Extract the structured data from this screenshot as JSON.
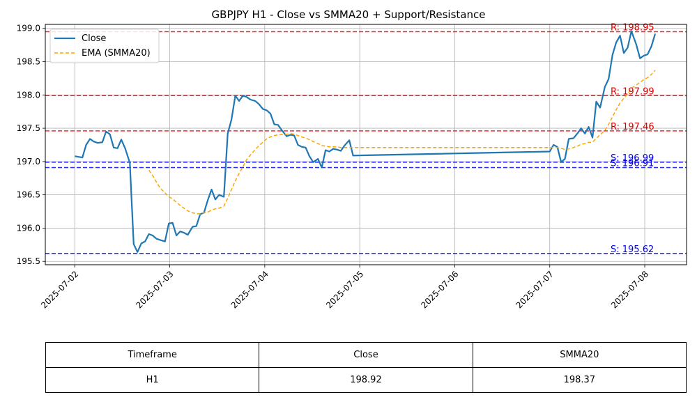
{
  "chart_data": {
    "type": "line",
    "title": "GBPJPY H1 - Close vs SMMA20 + Support/Resistance",
    "xlabel": "",
    "ylabel": "",
    "x_ticks": [
      "2025-07-02",
      "2025-07-03",
      "2025-07-04",
      "2025-07-05",
      "2025-07-06",
      "2025-07-07",
      "2025-07-08"
    ],
    "y_ticks": [
      "195.5",
      "196.0",
      "196.5",
      "197.0",
      "197.5",
      "198.0",
      "198.5",
      "199.0"
    ],
    "ylim": [
      195.45,
      199.06
    ],
    "xlim_days": [
      -0.31,
      6.44
    ],
    "grid": true,
    "legend_position": "top-left",
    "series": [
      {
        "name": "Close",
        "color": "#1f77b4",
        "style": "solid",
        "points": [
          [
            0.0,
            197.08
          ],
          [
            0.04,
            197.07
          ],
          [
            0.08,
            197.06
          ],
          [
            0.12,
            197.25
          ],
          [
            0.16,
            197.34
          ],
          [
            0.2,
            197.3
          ],
          [
            0.24,
            197.28
          ],
          [
            0.29,
            197.29
          ],
          [
            0.33,
            197.45
          ],
          [
            0.37,
            197.41
          ],
          [
            0.41,
            197.21
          ],
          [
            0.45,
            197.2
          ],
          [
            0.49,
            197.33
          ],
          [
            0.53,
            197.2
          ],
          [
            0.58,
            196.98
          ],
          [
            0.62,
            195.76
          ],
          [
            0.66,
            195.64
          ],
          [
            0.7,
            195.77
          ],
          [
            0.74,
            195.8
          ],
          [
            0.78,
            195.91
          ],
          [
            0.82,
            195.89
          ],
          [
            0.86,
            195.84
          ],
          [
            0.9,
            195.82
          ],
          [
            0.95,
            195.8
          ],
          [
            0.99,
            196.07
          ],
          [
            1.03,
            196.08
          ],
          [
            1.07,
            195.89
          ],
          [
            1.11,
            195.95
          ],
          [
            1.15,
            195.93
          ],
          [
            1.19,
            195.9
          ],
          [
            1.24,
            196.02
          ],
          [
            1.28,
            196.03
          ],
          [
            1.32,
            196.21
          ],
          [
            1.36,
            196.23
          ],
          [
            1.4,
            196.42
          ],
          [
            1.44,
            196.58
          ],
          [
            1.48,
            196.43
          ],
          [
            1.52,
            196.5
          ],
          [
            1.57,
            196.47
          ],
          [
            1.61,
            197.42
          ],
          [
            1.65,
            197.63
          ],
          [
            1.69,
            197.99
          ],
          [
            1.73,
            197.91
          ],
          [
            1.77,
            197.99
          ],
          [
            1.81,
            197.97
          ],
          [
            1.85,
            197.93
          ],
          [
            1.9,
            197.91
          ],
          [
            1.94,
            197.86
          ],
          [
            1.98,
            197.79
          ],
          [
            2.02,
            197.77
          ],
          [
            2.06,
            197.72
          ],
          [
            2.1,
            197.56
          ],
          [
            2.14,
            197.55
          ],
          [
            2.18,
            197.47
          ],
          [
            2.23,
            197.38
          ],
          [
            2.27,
            197.4
          ],
          [
            2.31,
            197.39
          ],
          [
            2.35,
            197.25
          ],
          [
            2.39,
            197.22
          ],
          [
            2.43,
            197.21
          ],
          [
            2.47,
            197.08
          ],
          [
            2.51,
            196.99
          ],
          [
            2.56,
            197.04
          ],
          [
            2.6,
            196.91
          ],
          [
            2.64,
            197.17
          ],
          [
            2.68,
            197.15
          ],
          [
            2.72,
            197.19
          ],
          [
            2.76,
            197.18
          ],
          [
            2.8,
            197.16
          ],
          [
            2.84,
            197.24
          ],
          [
            2.89,
            197.32
          ],
          [
            2.93,
            197.09
          ],
          [
            5.0,
            197.15
          ],
          [
            5.04,
            197.25
          ],
          [
            5.08,
            197.22
          ],
          [
            5.12,
            196.99
          ],
          [
            5.16,
            197.04
          ],
          [
            5.2,
            197.34
          ],
          [
            5.25,
            197.35
          ],
          [
            5.29,
            197.42
          ],
          [
            5.33,
            197.5
          ],
          [
            5.37,
            197.42
          ],
          [
            5.41,
            197.52
          ],
          [
            5.45,
            197.36
          ],
          [
            5.49,
            197.9
          ],
          [
            5.53,
            197.81
          ],
          [
            5.58,
            198.12
          ],
          [
            5.62,
            198.24
          ],
          [
            5.66,
            198.6
          ],
          [
            5.7,
            198.79
          ],
          [
            5.74,
            198.89
          ],
          [
            5.78,
            198.63
          ],
          [
            5.82,
            198.71
          ],
          [
            5.86,
            198.96
          ],
          [
            5.91,
            198.76
          ],
          [
            5.95,
            198.55
          ],
          [
            5.99,
            198.59
          ],
          [
            6.03,
            198.61
          ],
          [
            6.07,
            198.73
          ],
          [
            6.11,
            198.92
          ]
        ]
      },
      {
        "name": "EMA (SMMA20)",
        "color": "#ffa500",
        "style": "dashed",
        "points": [
          [
            0.78,
            196.87
          ],
          [
            0.82,
            196.79
          ],
          [
            0.86,
            196.69
          ],
          [
            0.9,
            196.6
          ],
          [
            0.95,
            196.53
          ],
          [
            0.99,
            196.47
          ],
          [
            1.03,
            196.44
          ],
          [
            1.07,
            196.39
          ],
          [
            1.11,
            196.34
          ],
          [
            1.15,
            196.3
          ],
          [
            1.19,
            196.26
          ],
          [
            1.24,
            196.23
          ],
          [
            1.28,
            196.22
          ],
          [
            1.32,
            196.21
          ],
          [
            1.36,
            196.23
          ],
          [
            1.4,
            196.24
          ],
          [
            1.44,
            196.27
          ],
          [
            1.48,
            196.29
          ],
          [
            1.52,
            196.3
          ],
          [
            1.57,
            196.33
          ],
          [
            1.61,
            196.45
          ],
          [
            1.65,
            196.58
          ],
          [
            1.69,
            196.71
          ],
          [
            1.73,
            196.82
          ],
          [
            1.77,
            196.92
          ],
          [
            1.81,
            197.03
          ],
          [
            1.85,
            197.1
          ],
          [
            1.9,
            197.18
          ],
          [
            1.94,
            197.24
          ],
          [
            1.98,
            197.29
          ],
          [
            2.02,
            197.34
          ],
          [
            2.06,
            197.37
          ],
          [
            2.1,
            197.39
          ],
          [
            2.14,
            197.4
          ],
          [
            2.18,
            197.41
          ],
          [
            2.23,
            197.41
          ],
          [
            2.27,
            197.42
          ],
          [
            2.31,
            197.41
          ],
          [
            2.35,
            197.39
          ],
          [
            2.39,
            197.37
          ],
          [
            2.43,
            197.35
          ],
          [
            2.47,
            197.33
          ],
          [
            2.51,
            197.3
          ],
          [
            2.56,
            197.27
          ],
          [
            2.6,
            197.24
          ],
          [
            2.64,
            197.23
          ],
          [
            2.68,
            197.22
          ],
          [
            2.72,
            197.22
          ],
          [
            2.76,
            197.22
          ],
          [
            2.8,
            197.21
          ],
          [
            2.84,
            197.21
          ],
          [
            2.89,
            197.21
          ],
          [
            2.93,
            197.21
          ],
          [
            5.0,
            197.21
          ],
          [
            5.04,
            197.21
          ],
          [
            5.08,
            197.21
          ],
          [
            5.12,
            197.2
          ],
          [
            5.16,
            197.18
          ],
          [
            5.2,
            197.19
          ],
          [
            5.25,
            197.21
          ],
          [
            5.29,
            197.23
          ],
          [
            5.33,
            197.26
          ],
          [
            5.37,
            197.27
          ],
          [
            5.41,
            197.29
          ],
          [
            5.45,
            197.29
          ],
          [
            5.49,
            197.35
          ],
          [
            5.53,
            197.4
          ],
          [
            5.58,
            197.47
          ],
          [
            5.62,
            197.56
          ],
          [
            5.66,
            197.67
          ],
          [
            5.7,
            197.78
          ],
          [
            5.74,
            197.88
          ],
          [
            5.78,
            197.95
          ],
          [
            5.82,
            198.01
          ],
          [
            5.86,
            198.1
          ],
          [
            5.91,
            198.15
          ],
          [
            5.95,
            198.19
          ],
          [
            5.99,
            198.23
          ],
          [
            6.03,
            198.26
          ],
          [
            6.07,
            198.31
          ],
          [
            6.11,
            198.37
          ]
        ]
      }
    ],
    "levels": [
      {
        "kind": "resistance",
        "value": 198.95,
        "label": "R: 198.95",
        "color": "#ee2c2c"
      },
      {
        "kind": "resistance",
        "value": 197.99,
        "label": "R: 197.99",
        "color": "#ee2c2c"
      },
      {
        "kind": "resistance",
        "value": 197.46,
        "label": "R: 197.46",
        "color": "#ee2c2c"
      },
      {
        "kind": "support",
        "value": 196.99,
        "label": "S: 196.99",
        "color": "#2a2aee"
      },
      {
        "kind": "support",
        "value": 196.91,
        "label": "S: 196.91",
        "color": "#2a2aee"
      },
      {
        "kind": "support",
        "value": 195.62,
        "label": "S: 195.62",
        "color": "#2a2aee"
      }
    ]
  },
  "table": {
    "headers": [
      "Timeframe",
      "Close",
      "SMMA20"
    ],
    "row": [
      "H1",
      "198.92",
      "198.37"
    ]
  }
}
